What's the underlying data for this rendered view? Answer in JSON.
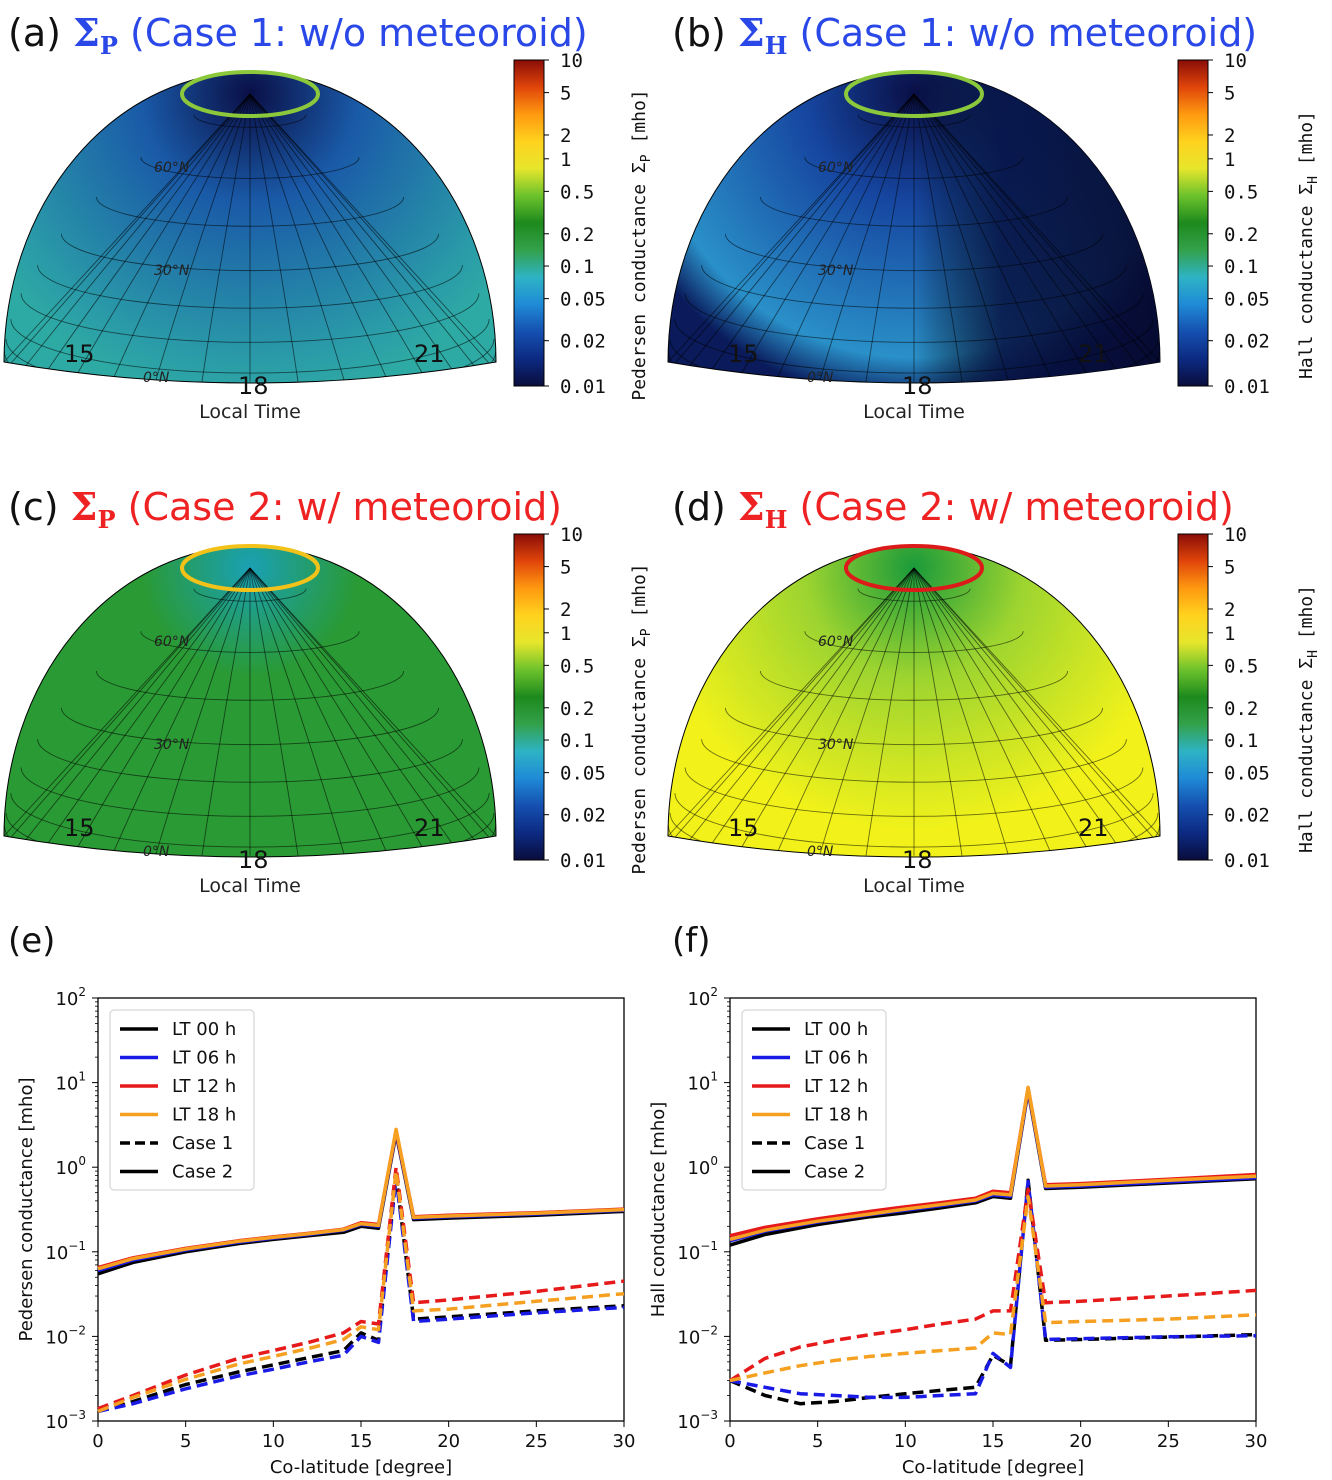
{
  "colorbar_ticks": [
    "10",
    "5",
    "2",
    "1",
    "0.5",
    "0.2",
    "0.1",
    "0.05",
    "0.02",
    "0.01"
  ],
  "colormap": [
    "#0a0d3c",
    "#0c2a82",
    "#1550b0",
    "#1f8ad6",
    "#2eb3c4",
    "#33a14a",
    "#1d8a1d",
    "#6cc22c",
    "#e6e62c",
    "#ffd21e",
    "#ff9a10",
    "#e0450a",
    "#8a0d08"
  ],
  "latitude_labels": [
    "60°N",
    "30°N",
    "0°N"
  ],
  "local_time_labels": [
    "15",
    "18",
    "21"
  ],
  "panels": [
    {
      "id": "a",
      "label_prefix": "(a) ",
      "symbol": "Σ",
      "subscript": "P",
      "case_text": " (Case 1: w/o meteoroid)",
      "color": "#2a48e8",
      "cbar_label": "Pedersen conductance Σ",
      "cbar_sub": "P",
      "cbar_unit": " [mho]",
      "xlabel": "Local Time",
      "ring_color": "#8cc83c",
      "fill": {
        "top": "#0a0f46",
        "mid": "#1a5aa8",
        "bottom": "#2a9aa8",
        "side": "#2eaaa4"
      }
    },
    {
      "id": "b",
      "label_prefix": "(b) ",
      "symbol": "Σ",
      "subscript": "H",
      "case_text": " (Case 1: w/o meteoroid)",
      "color": "#2a48e8",
      "cbar_label": "Hall conductance Σ",
      "cbar_sub": "H",
      "cbar_unit": " [mho]",
      "xlabel": "Local Time",
      "ring_color": "#8cc83c",
      "fill": {
        "top": "#0a0f46",
        "mid": "#1646a0",
        "bottom": "#2a90c8",
        "side": "#0a1a5a"
      }
    },
    {
      "id": "c",
      "label_prefix": "(c) ",
      "symbol": "Σ",
      "subscript": "P",
      "case_text": " (Case 2: w/ meteoroid)",
      "color": "#ee2222",
      "cbar_label": "Pedersen conductance Σ",
      "cbar_sub": "P",
      "cbar_unit": " [mho]",
      "xlabel": "Local Time",
      "ring_color": "#f2c21a",
      "fill": {
        "top": "#1aa0b4",
        "mid": "#2a9a34",
        "bottom": "#2a9a34",
        "side": "#2a9a34"
      }
    },
    {
      "id": "d",
      "label_prefix": "(d) ",
      "symbol": "Σ",
      "subscript": "H",
      "case_text": " (Case 2: w/ meteoroid)",
      "color": "#ee2222",
      "cbar_label": "Hall conductance Σ",
      "cbar_sub": "H",
      "cbar_unit": " [mho]",
      "xlabel": "Local Time",
      "ring_color": "#dd1a1a",
      "fill": {
        "top": "#1a9a3a",
        "mid": "#9cd430",
        "bottom": "#f2f21a",
        "side": "#f2f21a"
      }
    }
  ],
  "chart_data": [
    {
      "panel": "(e)",
      "type": "line",
      "xlabel": "Co-latitude [degree]",
      "ylabel": "Pedersen conductance [mho]",
      "xlim": [
        0,
        30
      ],
      "ylim": [
        0.001,
        100
      ],
      "yscale": "log",
      "xticks": [
        "0",
        "5",
        "10",
        "15",
        "20",
        "25",
        "30"
      ],
      "yticks": [
        {
          "base": "10",
          "exp": "2"
        },
        {
          "base": "10",
          "exp": "1"
        },
        {
          "base": "10",
          "exp": "0"
        },
        {
          "base": "10",
          "exp": "−1"
        },
        {
          "base": "10",
          "exp": "−2"
        },
        {
          "base": "10",
          "exp": "−3"
        }
      ],
      "legend": {
        "position": "top-left",
        "entries": [
          {
            "label": "LT 00 h",
            "color": "#000000",
            "dash": false
          },
          {
            "label": "LT 06 h",
            "color": "#1a1ae6",
            "dash": false
          },
          {
            "label": "LT 12 h",
            "color": "#e61a1a",
            "dash": false
          },
          {
            "label": "LT 18 h",
            "color": "#f5a020",
            "dash": false
          },
          {
            "label": "Case 1",
            "color": "#000000",
            "dash": true
          },
          {
            "label": "Case 2",
            "color": "#000000",
            "dash": false
          }
        ]
      },
      "series": [
        {
          "name": "LT 00 h",
          "case": "Case 2",
          "color": "#000000",
          "dash": false,
          "x": [
            0,
            2,
            5,
            8,
            10,
            12,
            14,
            15,
            16,
            17,
            18,
            20,
            25,
            30
          ],
          "y": [
            0.055,
            0.075,
            0.1,
            0.125,
            0.14,
            0.155,
            0.17,
            0.2,
            0.19,
            2.5,
            0.24,
            0.25,
            0.27,
            0.3
          ]
        },
        {
          "name": "LT 06 h",
          "case": "Case 2",
          "color": "#1a1ae6",
          "dash": false,
          "x": [
            0,
            2,
            5,
            8,
            10,
            12,
            14,
            15,
            16,
            17,
            18,
            20,
            25,
            30
          ],
          "y": [
            0.06,
            0.08,
            0.105,
            0.13,
            0.145,
            0.16,
            0.18,
            0.21,
            0.2,
            2.6,
            0.25,
            0.26,
            0.28,
            0.31
          ]
        },
        {
          "name": "LT 12 h",
          "case": "Case 2",
          "color": "#e61a1a",
          "dash": false,
          "x": [
            0,
            2,
            5,
            8,
            10,
            12,
            14,
            15,
            16,
            17,
            18,
            20,
            25,
            30
          ],
          "y": [
            0.065,
            0.085,
            0.11,
            0.135,
            0.15,
            0.165,
            0.185,
            0.22,
            0.21,
            2.7,
            0.26,
            0.27,
            0.29,
            0.32
          ]
        },
        {
          "name": "LT 18 h",
          "case": "Case 2",
          "color": "#f5a020",
          "dash": false,
          "x": [
            0,
            2,
            5,
            8,
            10,
            12,
            14,
            15,
            16,
            17,
            18,
            20,
            25,
            30
          ],
          "y": [
            0.063,
            0.083,
            0.108,
            0.133,
            0.148,
            0.163,
            0.183,
            0.215,
            0.205,
            2.8,
            0.255,
            0.265,
            0.285,
            0.315
          ]
        },
        {
          "name": "LT 00 h",
          "case": "Case 1",
          "color": "#000000",
          "dash": true,
          "x": [
            0,
            2,
            5,
            8,
            10,
            12,
            14,
            15,
            16,
            17,
            18,
            20,
            25,
            30
          ],
          "y": [
            0.0013,
            0.0017,
            0.0027,
            0.0038,
            0.0046,
            0.0056,
            0.0068,
            0.011,
            0.009,
            0.8,
            0.016,
            0.017,
            0.02,
            0.023
          ]
        },
        {
          "name": "LT 06 h",
          "case": "Case 1",
          "color": "#1a1ae6",
          "dash": true,
          "x": [
            0,
            2,
            5,
            8,
            10,
            12,
            14,
            15,
            16,
            17,
            18,
            20,
            25,
            30
          ],
          "y": [
            0.0013,
            0.0016,
            0.0024,
            0.0034,
            0.0041,
            0.005,
            0.006,
            0.01,
            0.0085,
            0.75,
            0.015,
            0.016,
            0.019,
            0.022
          ]
        },
        {
          "name": "LT 12 h",
          "case": "Case 1",
          "color": "#e61a1a",
          "dash": true,
          "x": [
            0,
            2,
            5,
            8,
            10,
            12,
            14,
            15,
            16,
            17,
            18,
            20,
            25,
            30
          ],
          "y": [
            0.0014,
            0.002,
            0.0035,
            0.0055,
            0.0068,
            0.0085,
            0.011,
            0.015,
            0.014,
            1.0,
            0.025,
            0.027,
            0.034,
            0.045
          ]
        },
        {
          "name": "LT 18 h",
          "case": "Case 1",
          "color": "#f5a020",
          "dash": true,
          "x": [
            0,
            2,
            5,
            8,
            10,
            12,
            14,
            15,
            16,
            17,
            18,
            20,
            25,
            30
          ],
          "y": [
            0.0013,
            0.0019,
            0.0031,
            0.0047,
            0.0058,
            0.0072,
            0.0092,
            0.013,
            0.012,
            0.9,
            0.02,
            0.021,
            0.026,
            0.032
          ]
        }
      ]
    },
    {
      "panel": "(f)",
      "type": "line",
      "xlabel": "Co-latitude [degree]",
      "ylabel": "Hall conductance [mho]",
      "xlim": [
        0,
        30
      ],
      "ylim": [
        0.001,
        100
      ],
      "yscale": "log",
      "xticks": [
        "0",
        "5",
        "10",
        "15",
        "20",
        "25",
        "30"
      ],
      "yticks": [
        {
          "base": "10",
          "exp": "2"
        },
        {
          "base": "10",
          "exp": "1"
        },
        {
          "base": "10",
          "exp": "0"
        },
        {
          "base": "10",
          "exp": "−1"
        },
        {
          "base": "10",
          "exp": "−2"
        },
        {
          "base": "10",
          "exp": "−3"
        }
      ],
      "legend": {
        "position": "top-left",
        "entries": [
          {
            "label": "LT 00 h",
            "color": "#000000",
            "dash": false
          },
          {
            "label": "LT 06 h",
            "color": "#1a1ae6",
            "dash": false
          },
          {
            "label": "LT 12 h",
            "color": "#e61a1a",
            "dash": false
          },
          {
            "label": "LT 18 h",
            "color": "#f5a020",
            "dash": false
          },
          {
            "label": "Case 1",
            "color": "#000000",
            "dash": true
          },
          {
            "label": "Case 2",
            "color": "#000000",
            "dash": false
          }
        ]
      },
      "series": [
        {
          "name": "LT 00 h",
          "case": "Case 2",
          "color": "#000000",
          "dash": false,
          "x": [
            0,
            2,
            5,
            8,
            10,
            12,
            14,
            15,
            16,
            17,
            18,
            20,
            25,
            30
          ],
          "y": [
            0.12,
            0.16,
            0.21,
            0.26,
            0.29,
            0.33,
            0.38,
            0.45,
            0.43,
            8.0,
            0.56,
            0.58,
            0.65,
            0.73
          ]
        },
        {
          "name": "LT 06 h",
          "case": "Case 2",
          "color": "#1a1ae6",
          "dash": false,
          "x": [
            0,
            2,
            5,
            8,
            10,
            12,
            14,
            15,
            16,
            17,
            18,
            20,
            25,
            30
          ],
          "y": [
            0.135,
            0.175,
            0.225,
            0.275,
            0.31,
            0.35,
            0.4,
            0.47,
            0.45,
            8.2,
            0.58,
            0.6,
            0.67,
            0.75
          ]
        },
        {
          "name": "LT 12 h",
          "case": "Case 2",
          "color": "#e61a1a",
          "dash": false,
          "x": [
            0,
            2,
            5,
            8,
            10,
            12,
            14,
            15,
            16,
            17,
            18,
            20,
            25,
            30
          ],
          "y": [
            0.155,
            0.195,
            0.245,
            0.3,
            0.34,
            0.38,
            0.43,
            0.52,
            0.5,
            8.6,
            0.62,
            0.64,
            0.72,
            0.82
          ]
        },
        {
          "name": "LT 18 h",
          "case": "Case 2",
          "color": "#f5a020",
          "dash": false,
          "x": [
            0,
            2,
            5,
            8,
            10,
            12,
            14,
            15,
            16,
            17,
            18,
            20,
            25,
            30
          ],
          "y": [
            0.14,
            0.18,
            0.23,
            0.28,
            0.32,
            0.36,
            0.41,
            0.49,
            0.47,
            8.8,
            0.6,
            0.62,
            0.7,
            0.78
          ]
        },
        {
          "name": "LT 00 h",
          "case": "Case 1",
          "color": "#000000",
          "dash": true,
          "x": [
            0,
            2,
            4,
            6,
            8,
            10,
            12,
            14,
            15,
            16,
            17,
            18,
            20,
            25,
            30
          ],
          "y": [
            0.003,
            0.002,
            0.0016,
            0.0017,
            0.0019,
            0.0021,
            0.0023,
            0.0025,
            0.006,
            0.0045,
            0.7,
            0.009,
            0.0092,
            0.0098,
            0.0105
          ]
        },
        {
          "name": "LT 06 h",
          "case": "Case 1",
          "color": "#1a1ae6",
          "dash": true,
          "x": [
            0,
            2,
            4,
            6,
            8,
            10,
            12,
            14,
            15,
            16,
            17,
            18,
            20,
            25,
            30
          ],
          "y": [
            0.003,
            0.0025,
            0.0021,
            0.002,
            0.0019,
            0.0019,
            0.002,
            0.0021,
            0.0063,
            0.0043,
            0.68,
            0.0092,
            0.0094,
            0.0099,
            0.0102
          ]
        },
        {
          "name": "LT 12 h",
          "case": "Case 1",
          "color": "#e61a1a",
          "dash": true,
          "x": [
            0,
            2,
            4,
            6,
            8,
            10,
            12,
            14,
            15,
            16,
            17,
            18,
            20,
            25,
            30
          ],
          "y": [
            0.003,
            0.0055,
            0.0075,
            0.009,
            0.0105,
            0.012,
            0.014,
            0.016,
            0.02,
            0.02,
            0.55,
            0.025,
            0.026,
            0.03,
            0.035
          ]
        },
        {
          "name": "LT 18 h",
          "case": "Case 1",
          "color": "#f5a020",
          "dash": true,
          "x": [
            0,
            2,
            4,
            6,
            8,
            10,
            12,
            14,
            15,
            16,
            17,
            18,
            20,
            25,
            30
          ],
          "y": [
            0.003,
            0.0037,
            0.0045,
            0.0052,
            0.0058,
            0.0063,
            0.0068,
            0.0073,
            0.011,
            0.0105,
            0.45,
            0.0145,
            0.015,
            0.016,
            0.018
          ]
        }
      ]
    }
  ],
  "panel_letters": {
    "e": "(e)",
    "f": "(f)"
  }
}
